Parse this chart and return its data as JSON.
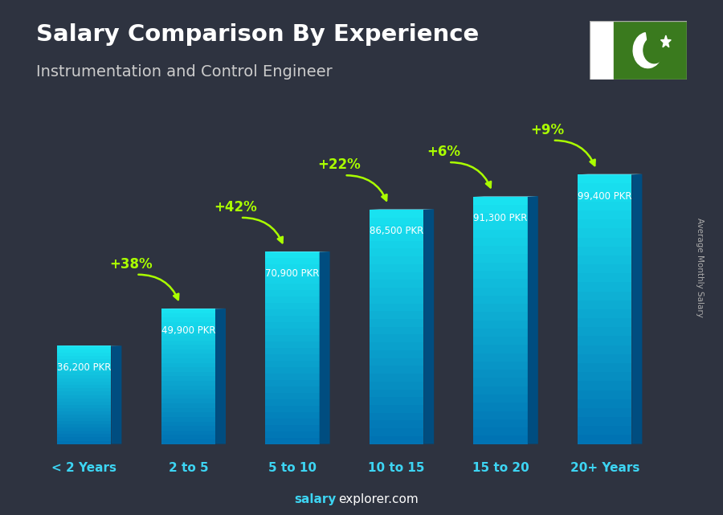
{
  "title_line1": "Salary Comparison By Experience",
  "title_line2": "Instrumentation and Control Engineer",
  "categories": [
    "< 2 Years",
    "2 to 5",
    "5 to 10",
    "10 to 15",
    "15 to 20",
    "20+ Years"
  ],
  "values": [
    36200,
    49900,
    70900,
    86500,
    91300,
    99400
  ],
  "value_labels": [
    "36,200 PKR",
    "49,900 PKR",
    "70,900 PKR",
    "86,500 PKR",
    "91,300 PKR",
    "99,400 PKR"
  ],
  "pct_labels": [
    "+38%",
    "+42%",
    "+22%",
    "+6%",
    "+9%"
  ],
  "pct_color": "#aaff00",
  "xlabel_color": "#00e5ff",
  "footer_salary": "salary",
  "footer_rest": "explorer.com",
  "ylabel_text": "Average Monthly Salary",
  "ylim": [
    0,
    120000
  ],
  "flag_green": "#3a7a1e",
  "bg_dark": [
    0.18,
    0.2,
    0.25
  ]
}
